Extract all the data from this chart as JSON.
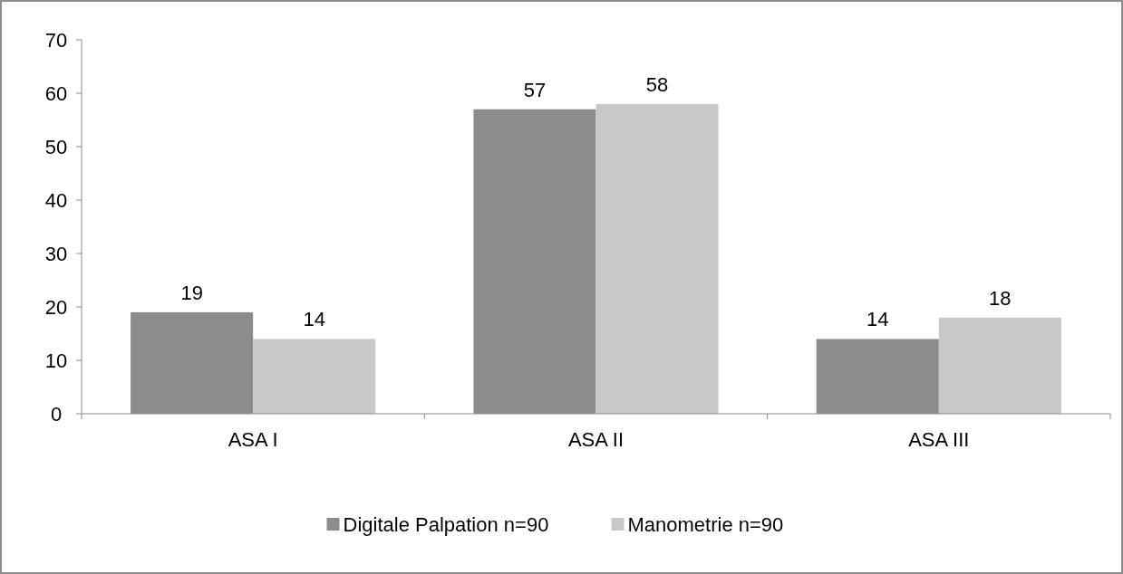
{
  "chart_data": {
    "type": "bar",
    "categories": [
      "ASA I",
      "ASA II",
      "ASA III"
    ],
    "series": [
      {
        "name": "Digitale Palpation n=90",
        "color": "#8c8c8c",
        "values": [
          19,
          57,
          14
        ]
      },
      {
        "name": "Manometrie n=90",
        "color": "#c8c8c8",
        "values": [
          14,
          58,
          18
        ]
      }
    ],
    "ylim": [
      0,
      70
    ],
    "yticks": [
      0,
      10,
      20,
      30,
      40,
      50,
      60,
      70
    ],
    "grid": false,
    "legend": "bottom",
    "data_labels": true
  }
}
